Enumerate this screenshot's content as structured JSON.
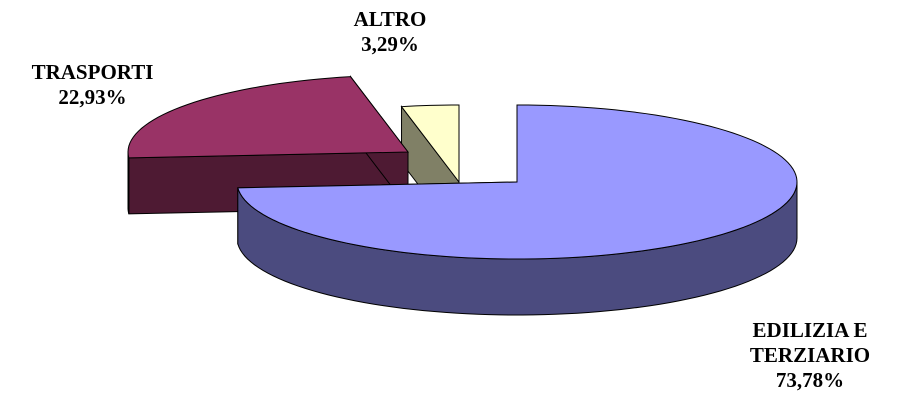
{
  "chart_data": {
    "type": "pie",
    "style": "3d-exploded",
    "slices": [
      {
        "label_line1": "EDILIZIA E",
        "label_line2": "TERZIARIO",
        "value": 73.78,
        "value_label": "73,78%",
        "color": "#9999ff",
        "side_color": "#4b4b7f"
      },
      {
        "label_line1": "TRASPORTI",
        "label_line2": "",
        "value": 22.93,
        "value_label": "22,93%",
        "color": "#993366",
        "side_color": "#4e1a33"
      },
      {
        "label_line1": "ALTRO",
        "label_line2": "",
        "value": 3.29,
        "value_label": "3,29%",
        "color": "#ffffcc",
        "side_color": "#808066"
      }
    ],
    "legend": "none"
  }
}
